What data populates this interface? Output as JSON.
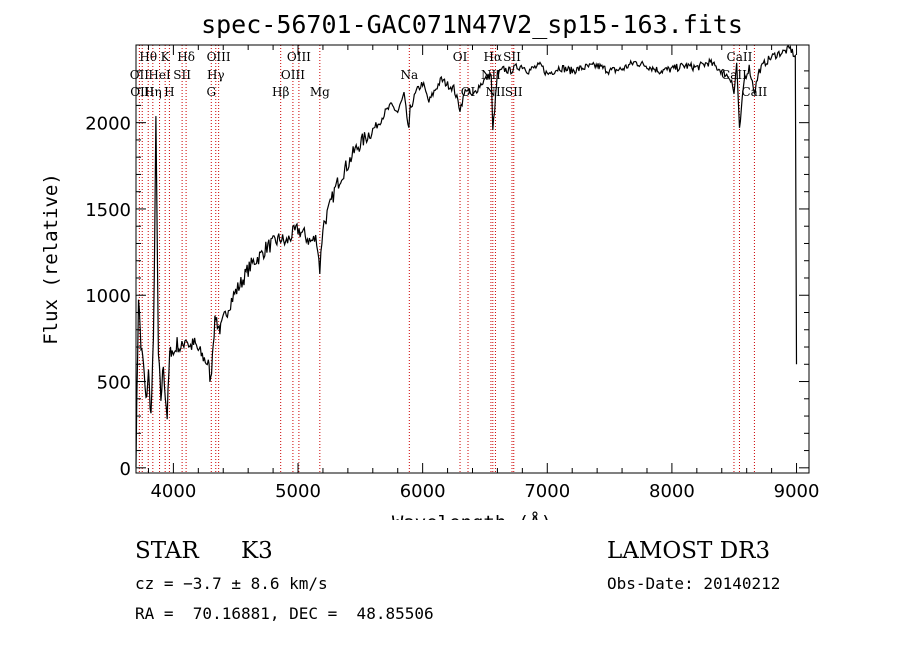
{
  "chart_data": {
    "type": "line",
    "title": "spec-56701-GAC071N47V2_sp15-163.fits",
    "xlabel": "Wavelength (Å)",
    "ylabel": "Flux (relative)",
    "xlim": [
      3700,
      9100
    ],
    "ylim": [
      -30,
      2450
    ],
    "xticks": [
      4000,
      5000,
      6000,
      7000,
      8000,
      9000
    ],
    "yticks": [
      0,
      500,
      1000,
      1500,
      2000
    ],
    "grid": false,
    "line_color": "#000000",
    "marker_color": "#cc0000",
    "spectrum": {
      "name": "flux",
      "x": [
        3700,
        3720,
        3740,
        3760,
        3780,
        3800,
        3820,
        3840,
        3860,
        3880,
        3900,
        3920,
        3935,
        3950,
        3970,
        3990,
        4000,
        4030,
        4060,
        4100,
        4130,
        4170,
        4200,
        4240,
        4280,
        4300,
        4320,
        4340,
        4360,
        4380,
        4400,
        4450,
        4500,
        4550,
        4600,
        4650,
        4700,
        4750,
        4800,
        4861,
        4900,
        4950,
        5000,
        5050,
        5100,
        5150,
        5175,
        5200,
        5250,
        5300,
        5350,
        5400,
        5450,
        5500,
        5550,
        5600,
        5650,
        5700,
        5750,
        5800,
        5850,
        5890,
        5900,
        5950,
        6000,
        6050,
        6100,
        6150,
        6200,
        6250,
        6300,
        6350,
        6400,
        6450,
        6500,
        6550,
        6563,
        6600,
        6650,
        6700,
        6750,
        6800,
        6850,
        6900,
        6950,
        7000,
        7050,
        7100,
        7200,
        7300,
        7400,
        7500,
        7600,
        7700,
        7800,
        7900,
        8000,
        8100,
        8200,
        8300,
        8400,
        8480,
        8498,
        8520,
        8542,
        8580,
        8620,
        8662,
        8700,
        8750,
        8800,
        8850,
        8900,
        8950,
        8990,
        9000
      ],
      "values": [
        50,
        1000,
        700,
        600,
        380,
        550,
        300,
        720,
        2000,
        650,
        400,
        600,
        420,
        300,
        650,
        700,
        650,
        720,
        680,
        760,
        700,
        720,
        680,
        640,
        600,
        500,
        750,
        880,
        820,
        800,
        850,
        950,
        1020,
        1080,
        1150,
        1200,
        1230,
        1280,
        1300,
        1330,
        1300,
        1350,
        1380,
        1350,
        1310,
        1330,
        1150,
        1400,
        1500,
        1620,
        1700,
        1760,
        1830,
        1880,
        1920,
        1960,
        2000,
        2060,
        2100,
        2060,
        2160,
        1950,
        2080,
        2180,
        2230,
        2120,
        2190,
        2250,
        2220,
        2200,
        2080,
        2200,
        2150,
        2210,
        2250,
        2280,
        1950,
        2280,
        2310,
        2300,
        2320,
        2330,
        2300,
        2320,
        2330,
        2280,
        2300,
        2320,
        2300,
        2320,
        2330,
        2300,
        2310,
        2350,
        2330,
        2300,
        2310,
        2330,
        2320,
        2350,
        2300,
        2250,
        2160,
        2350,
        1950,
        2250,
        2320,
        2180,
        2300,
        2350,
        2380,
        2400,
        2410,
        2430,
        2380,
        600
      ]
    },
    "lines": [
      {
        "label": "Hθ",
        "wavelength": 3798,
        "row": 0
      },
      {
        "label": "OII",
        "wavelength": 3727,
        "row": 1
      },
      {
        "label": "OIII",
        "wavelength": 3750,
        "row": 2
      },
      {
        "label": "K",
        "wavelength": 3934,
        "row": 0
      },
      {
        "label": "HeI",
        "wavelength": 3889,
        "row": 1
      },
      {
        "label": "Hη",
        "wavelength": 3835,
        "row": 2
      },
      {
        "label": "SII",
        "wavelength": 4070,
        "row": 1
      },
      {
        "label": "H",
        "wavelength": 3968,
        "row": 2
      },
      {
        "label": "Hδ",
        "wavelength": 4102,
        "row": 0
      },
      {
        "label": "OIII",
        "wavelength": 4363,
        "row": 0
      },
      {
        "label": "Hγ",
        "wavelength": 4340,
        "row": 1
      },
      {
        "label": "G",
        "wavelength": 4304,
        "row": 2
      },
      {
        "label": "OIII",
        "wavelength": 5007,
        "row": 0
      },
      {
        "label": "OIII",
        "wavelength": 4959,
        "row": 1
      },
      {
        "label": "Hβ",
        "wavelength": 4861,
        "row": 2
      },
      {
        "label": "Mg",
        "wavelength": 5175,
        "row": 2
      },
      {
        "label": "Na",
        "wavelength": 5893,
        "row": 1
      },
      {
        "label": "OI",
        "wavelength": 6300,
        "row": 0
      },
      {
        "label": "OI",
        "wavelength": 6364,
        "row": 2
      },
      {
        "label": "Hα",
        "wavelength": 6563,
        "row": 0
      },
      {
        "label": "NII",
        "wavelength": 6548,
        "row": 1
      },
      {
        "label": "NII",
        "wavelength": 6584,
        "row": 2
      },
      {
        "label": "SII",
        "wavelength": 6717,
        "row": 0
      },
      {
        "label": "SII",
        "wavelength": 6731,
        "row": 2
      },
      {
        "label": "CaII",
        "wavelength": 8542,
        "row": 0
      },
      {
        "label": "CaII",
        "wavelength": 8498,
        "row": 1
      },
      {
        "label": "CaII",
        "wavelength": 8662,
        "row": 2
      }
    ]
  },
  "info": {
    "object_class": "STAR",
    "subclass": "K3",
    "survey": "LAMOST DR3",
    "cz": "cz = −3.7 ± 8.6 km/s",
    "obs_date": "Obs-Date: 20140212",
    "coords": "RA =  70.16881, DEC =  48.85506"
  }
}
